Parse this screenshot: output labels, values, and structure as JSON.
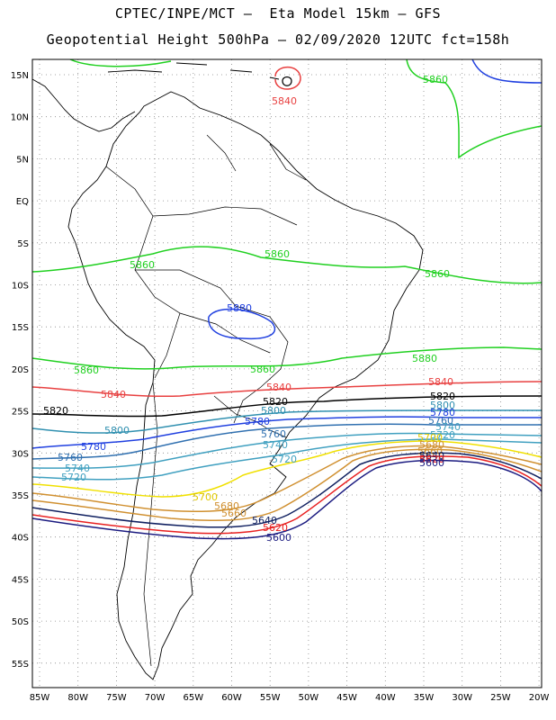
{
  "header": {
    "line1": "CPTEC/INPE/MCT –  Eta Model 15km – GFS",
    "line2": "Geopotential Height 500hPa – 02/09/2020 12UTC fct=158h"
  },
  "axes": {
    "lat_labels": [
      "15N",
      "10N",
      "5N",
      "EQ",
      "5S",
      "10S",
      "15S",
      "20S",
      "25S",
      "30S",
      "35S",
      "40S",
      "45S",
      "50S",
      "55S"
    ],
    "lon_labels": [
      "85W",
      "80W",
      "75W",
      "70W",
      "65W",
      "60W",
      "55W",
      "50W",
      "45W",
      "40W",
      "35W",
      "30W",
      "25W",
      "20W"
    ]
  },
  "colors": {
    "5600": "#1a1a80",
    "5620": "#e82020",
    "5640": "#102060",
    "5660": "#d09030",
    "5680": "#d09030",
    "5700": "#f0e000",
    "5720": "#40a0c0",
    "5740": "#40a0c0",
    "5760": "#3070b0",
    "5780": "#2040e0",
    "5800": "#3090b0",
    "5820": "#000000",
    "5840": "#e84040",
    "5860": "#20d020",
    "5880": "#2040e0"
  },
  "contour_labels": {
    "c5880_top": "5880",
    "c5880_center": "5880",
    "c5840_top": "5840",
    "c5860_a": "5860",
    "c5860_b": "5860",
    "c5860_c": "5860",
    "c5860_d": "5860",
    "c5860_e": "5860",
    "c5860_f": "5860",
    "c5840_a": "5840",
    "c5840_b": "5840",
    "c5840_c": "5840",
    "c5820_a": "5820",
    "c5820_b": "5820",
    "c5820_c": "5820",
    "c5800_a": "5800",
    "c5800_b": "5800",
    "c5800_c": "5800",
    "c5780_a": "5780",
    "c5780_b": "5780",
    "c5780_c": "5780",
    "c5760_a": "5760",
    "c5760_b": "5760",
    "c5760_c": "5760",
    "c5740_a": "5740",
    "c5740_b": "5740",
    "c5740_c": "5740",
    "c5720_a": "5720",
    "c5720_b": "5720",
    "c5720_c": "5720",
    "c5700_a": "5700",
    "c5700_b": "5700",
    "c5680_a": "5680",
    "c5680_b": "5680",
    "c5660_a": "5660",
    "c5660_b": "5660",
    "c5640_a": "5640",
    "c5640_b": "5640",
    "c5620_a": "5620",
    "c5620_b": "5620",
    "c5600_a": "5600",
    "c5600_b": "5600"
  }
}
